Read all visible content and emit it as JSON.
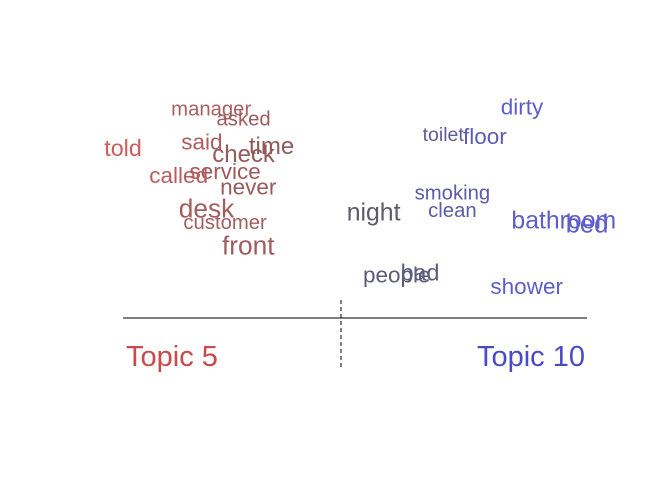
{
  "chart_data": {
    "type": "scatter",
    "subtype": "word-contrast-plot",
    "topics": [
      {
        "label": "Topic 5",
        "color": "#c94a4a"
      },
      {
        "label": "Topic 10",
        "color": "#4a4ac9"
      }
    ],
    "xlim": [
      0,
      1
    ],
    "ylim": [
      0,
      1
    ],
    "divider_x": 0.5,
    "words": [
      {
        "word": "manager",
        "x": 0.19,
        "y": 0.93,
        "color": "#a8605d",
        "weight": 0.35
      },
      {
        "word": "asked",
        "x": 0.26,
        "y": 0.88,
        "color": "#9e5c5e",
        "weight": 0.35
      },
      {
        "word": "dirty",
        "x": 0.86,
        "y": 0.94,
        "color": "#5e5ec8",
        "weight": 0.5
      },
      {
        "word": "told",
        "x": 0.0,
        "y": 0.73,
        "color": "#cf5c5c",
        "weight": 0.55
      },
      {
        "word": "said",
        "x": 0.17,
        "y": 0.76,
        "color": "#ad5d5d",
        "weight": 0.5
      },
      {
        "word": "time",
        "x": 0.32,
        "y": 0.74,
        "color": "#8e5a5c",
        "weight": 0.6
      },
      {
        "word": "check",
        "x": 0.26,
        "y": 0.7,
        "color": "#955a5c",
        "weight": 0.6
      },
      {
        "word": "toilet",
        "x": 0.69,
        "y": 0.8,
        "color": "#5c5c9a",
        "weight": 0.3
      },
      {
        "word": "floor",
        "x": 0.78,
        "y": 0.79,
        "color": "#5c5cb3",
        "weight": 0.5
      },
      {
        "word": "service",
        "x": 0.22,
        "y": 0.61,
        "color": "#a05a5c",
        "weight": 0.5
      },
      {
        "word": "called",
        "x": 0.12,
        "y": 0.59,
        "color": "#b85d5d",
        "weight": 0.5
      },
      {
        "word": "never",
        "x": 0.27,
        "y": 0.53,
        "color": "#985a5c",
        "weight": 0.5
      },
      {
        "word": "smoking",
        "x": 0.71,
        "y": 0.5,
        "color": "#5c5ca6",
        "weight": 0.35
      },
      {
        "word": "desk",
        "x": 0.18,
        "y": 0.42,
        "color": "#a35d5d",
        "weight": 0.75
      },
      {
        "word": "night",
        "x": 0.54,
        "y": 0.4,
        "color": "#5c5c66",
        "weight": 0.65
      },
      {
        "word": "clean",
        "x": 0.71,
        "y": 0.41,
        "color": "#5c5ca6",
        "weight": 0.35
      },
      {
        "word": "bathroom",
        "x": 0.95,
        "y": 0.36,
        "color": "#5e5ec8",
        "weight": 0.65
      },
      {
        "word": "bed",
        "x": 1.0,
        "y": 0.34,
        "color": "#5e5ec8",
        "weight": 0.7
      },
      {
        "word": "customer",
        "x": 0.22,
        "y": 0.35,
        "color": "#a45d5d",
        "weight": 0.35
      },
      {
        "word": "front",
        "x": 0.27,
        "y": 0.23,
        "color": "#9e5c5e",
        "weight": 0.75
      },
      {
        "word": "people",
        "x": 0.59,
        "y": 0.08,
        "color": "#5c5c7a",
        "weight": 0.5
      },
      {
        "word": "bad",
        "x": 0.64,
        "y": 0.09,
        "color": "#5c5c80",
        "weight": 0.55
      },
      {
        "word": "shower",
        "x": 0.87,
        "y": 0.02,
        "color": "#5e5ec8",
        "weight": 0.5
      }
    ],
    "grid": false,
    "legend": "bottom"
  }
}
